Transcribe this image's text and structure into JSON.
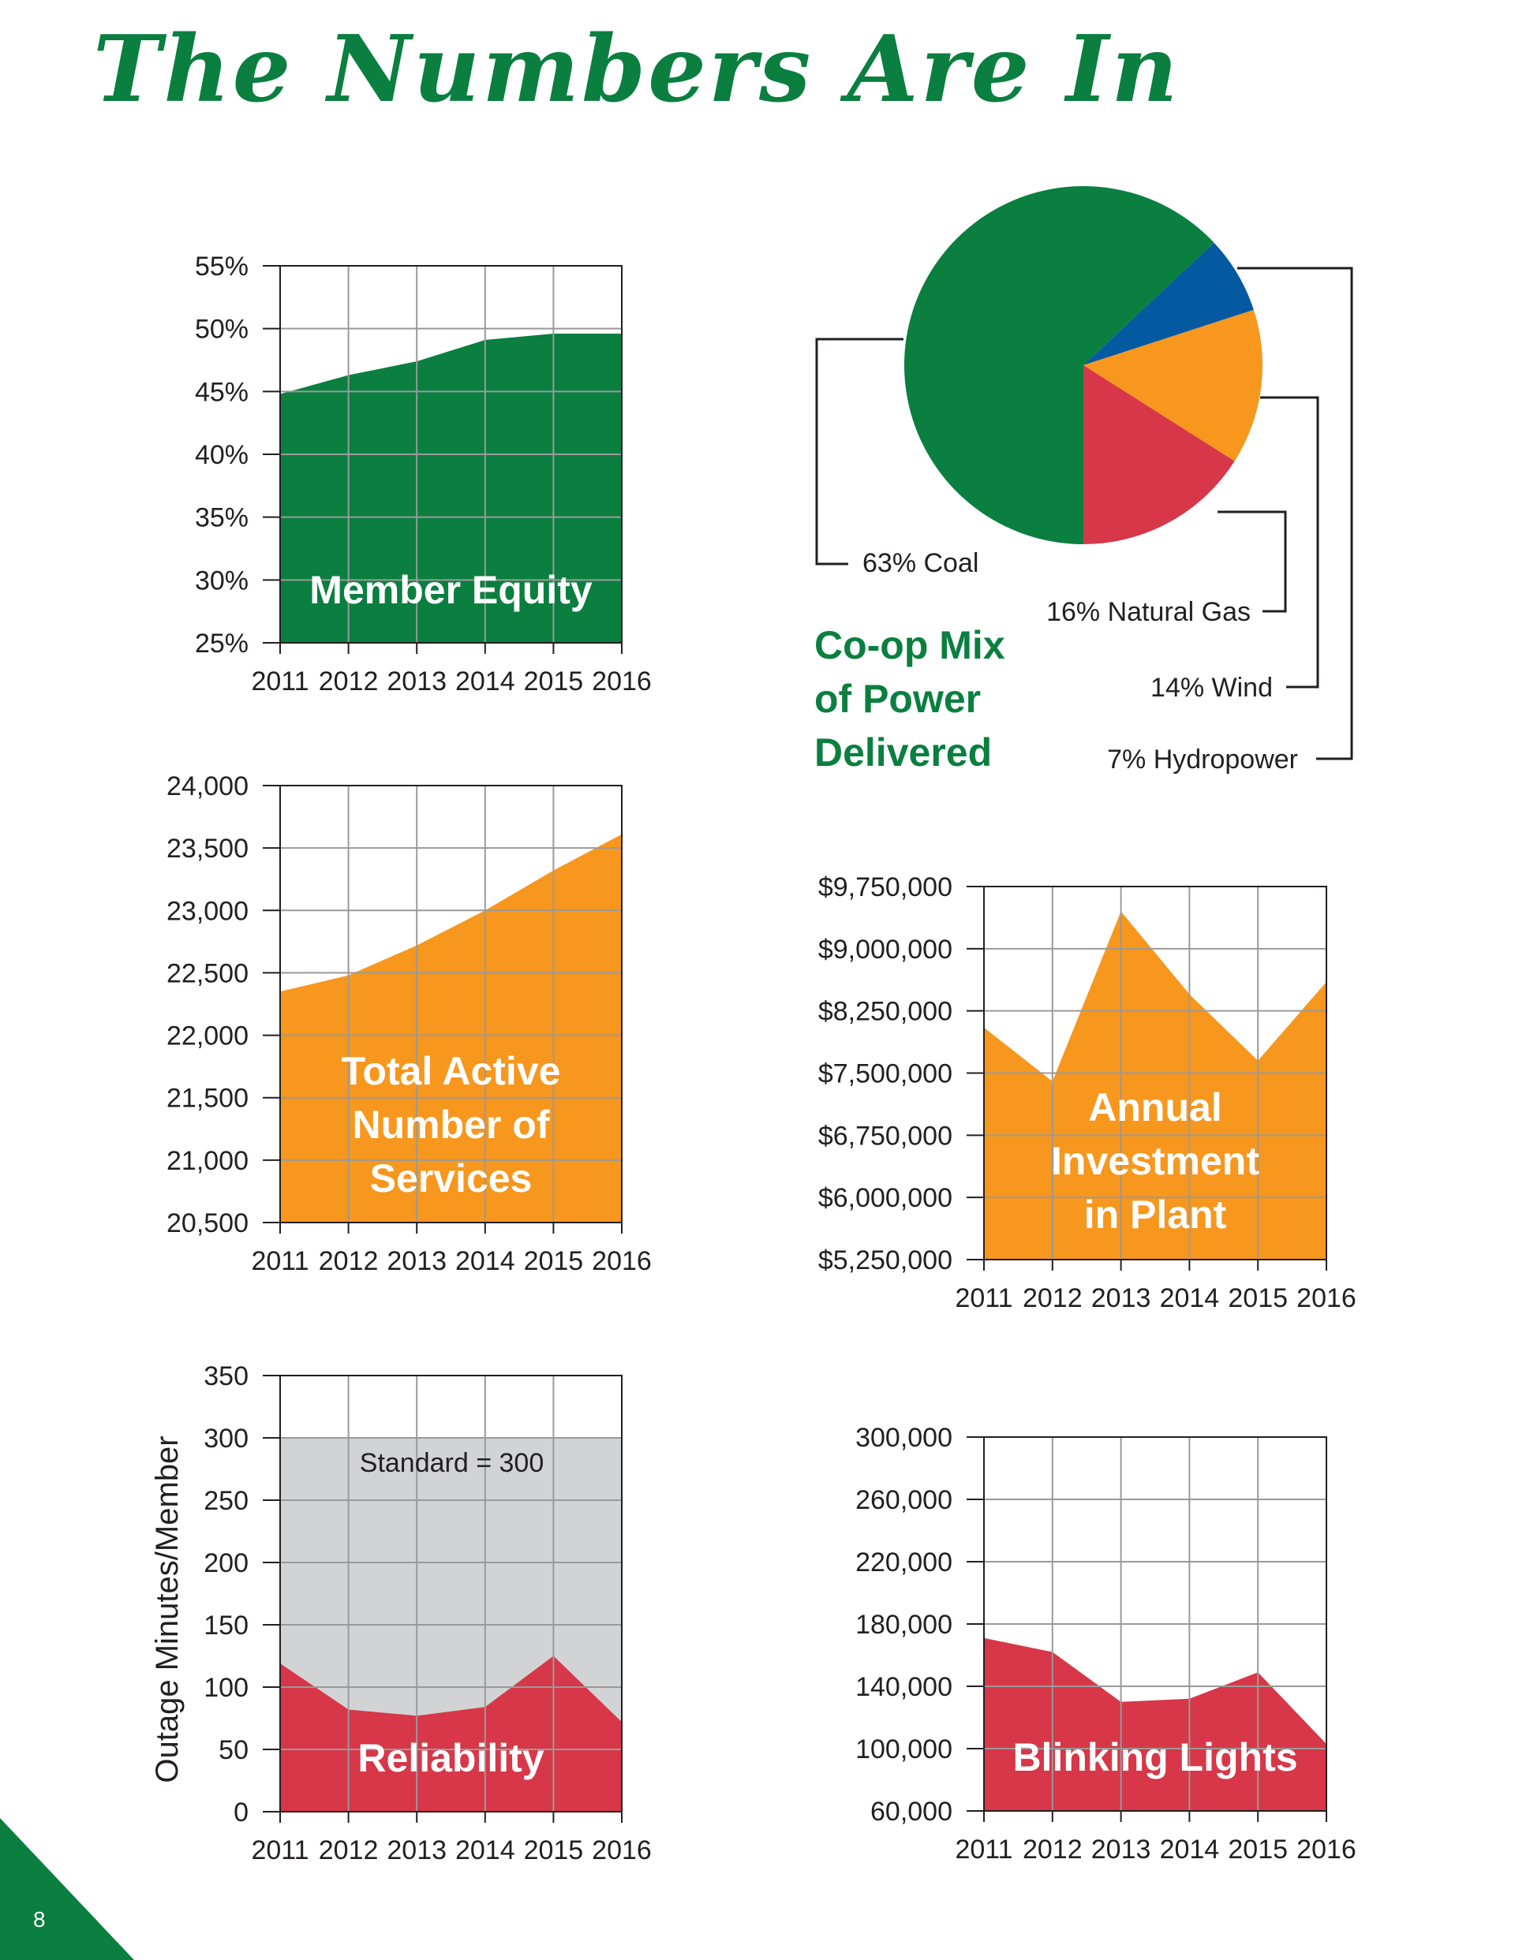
{
  "page": {
    "title": "The Numbers Are In",
    "page_number": "8",
    "colors": {
      "green": "#0a7f3f",
      "orange": "#f7971d",
      "red": "#d73748",
      "blue": "#045aa0",
      "grid": "#9a9a9a",
      "standard_band": "#d1d3d4"
    }
  },
  "chart_data": [
    {
      "id": "member-equity",
      "type": "area",
      "title": "Member Equity",
      "x": [
        "2011",
        "2012",
        "2013",
        "2014",
        "2015",
        "2016"
      ],
      "values": [
        44.8,
        46.3,
        47.4,
        49.1,
        49.6,
        49.6
      ],
      "ylim": [
        25,
        55
      ],
      "yticks": [
        25,
        30,
        35,
        40,
        45,
        50,
        55
      ],
      "ytick_labels": [
        "25%",
        "30%",
        "35%",
        "40%",
        "45%",
        "50%",
        "55%"
      ],
      "color": "#0a7f3f",
      "grid": true,
      "ylabel": ""
    },
    {
      "id": "active-services",
      "type": "area",
      "title": "Total Active\nNumber of\nServices",
      "x": [
        "2011",
        "2012",
        "2013",
        "2014",
        "2015",
        "2016"
      ],
      "values": [
        22350,
        22480,
        22720,
        23000,
        23320,
        23610
      ],
      "ylim": [
        20500,
        24000
      ],
      "yticks": [
        20500,
        21000,
        21500,
        22000,
        22500,
        23000,
        23500,
        24000
      ],
      "ytick_labels": [
        "20,500",
        "21,000",
        "21,500",
        "22,000",
        "22,500",
        "23,000",
        "23,500",
        "24,000"
      ],
      "color": "#f7971d",
      "grid": true,
      "ylabel": ""
    },
    {
      "id": "plant-investment",
      "type": "area",
      "title": "Annual\nInvestment\nin Plant",
      "x": [
        "2011",
        "2012",
        "2013",
        "2014",
        "2015",
        "2016"
      ],
      "values": [
        8050000,
        7400000,
        9450000,
        8450000,
        7650000,
        8600000
      ],
      "ylim": [
        5250000,
        9750000
      ],
      "yticks": [
        5250000,
        6000000,
        6750000,
        7500000,
        8250000,
        9000000,
        9750000
      ],
      "ytick_labels": [
        "$5,250,000",
        "$6,000,000",
        "$6,750,000",
        "$7,500,000",
        "$8,250,000",
        "$9,000,000",
        "$9,750,000"
      ],
      "color": "#f7971d",
      "grid": true,
      "ylabel": ""
    },
    {
      "id": "reliability",
      "type": "area",
      "title": "Reliability",
      "x": [
        "2011",
        "2012",
        "2013",
        "2014",
        "2015",
        "2016"
      ],
      "values": [
        119,
        82,
        77,
        84,
        125,
        72
      ],
      "ylim": [
        0,
        350
      ],
      "yticks": [
        0,
        50,
        100,
        150,
        200,
        250,
        300,
        350
      ],
      "ytick_labels": [
        "0",
        "50",
        "100",
        "150",
        "200",
        "250",
        "300",
        "350"
      ],
      "color": "#d73748",
      "grid": true,
      "ylabel": "Outage Minutes/Member",
      "standard": {
        "value": 300,
        "label": "Standard = 300",
        "color": "#d1d3d4"
      }
    },
    {
      "id": "blinking-lights",
      "type": "area",
      "title": "Blinking Lights",
      "x": [
        "2011",
        "2012",
        "2013",
        "2014",
        "2015",
        "2016"
      ],
      "values": [
        171000,
        162000,
        130000,
        132000,
        149000,
        103000
      ],
      "ylim": [
        60000,
        300000
      ],
      "yticks": [
        60000,
        100000,
        140000,
        180000,
        220000,
        260000,
        300000
      ],
      "ytick_labels": [
        "60,000",
        "100,000",
        "140,000",
        "180,000",
        "220,000",
        "260,000",
        "300,000"
      ],
      "color": "#d73748",
      "grid": true,
      "ylabel": ""
    },
    {
      "id": "power-mix",
      "type": "pie",
      "title": "Co-op Mix\nof Power\nDelivered",
      "slices": [
        {
          "label": "63% Coal",
          "value": 63,
          "color": "#0a7f3f"
        },
        {
          "label": "16% Natural Gas",
          "value": 16,
          "color": "#d73748"
        },
        {
          "label": "14% Wind",
          "value": 14,
          "color": "#f7971d"
        },
        {
          "label": "7% Hydropower",
          "value": 7,
          "color": "#045aa0"
        }
      ]
    }
  ]
}
